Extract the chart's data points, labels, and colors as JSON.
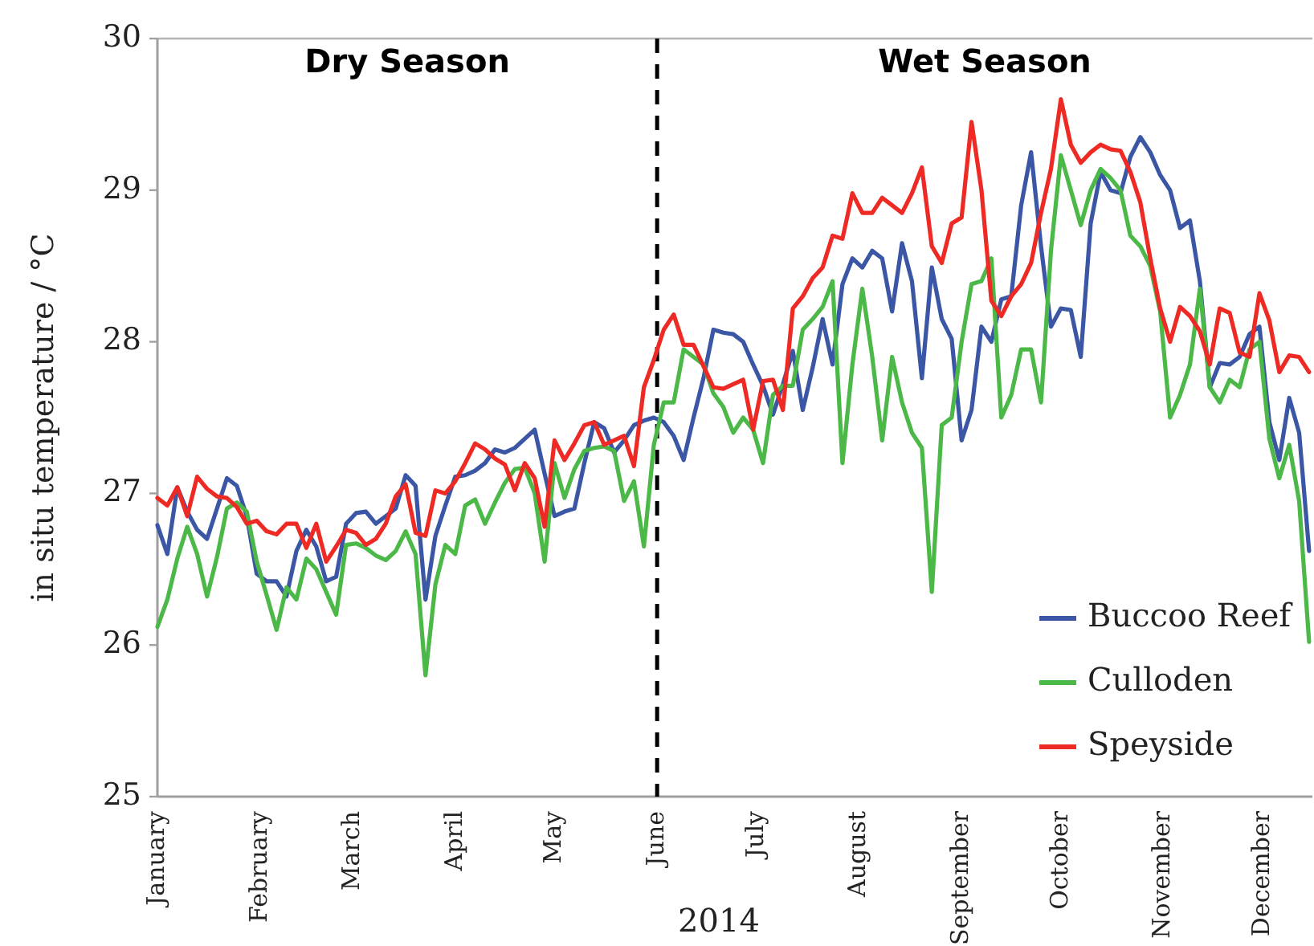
{
  "chart_data": {
    "type": "line",
    "xlabel": "2014",
    "ylabel": "in situ temperature / °C",
    "x": [
      "2014-01-01",
      "2014-01-04",
      "2014-01-07",
      "2014-01-10",
      "2014-01-13",
      "2014-01-16",
      "2014-01-19",
      "2014-01-22",
      "2014-01-25",
      "2014-01-28",
      "2014-01-31",
      "2014-02-03",
      "2014-02-06",
      "2014-02-09",
      "2014-02-12",
      "2014-02-15",
      "2014-02-18",
      "2014-02-21",
      "2014-02-24",
      "2014-02-27",
      "2014-03-02",
      "2014-03-05",
      "2014-03-08",
      "2014-03-11",
      "2014-03-14",
      "2014-03-17",
      "2014-03-20",
      "2014-03-23",
      "2014-03-26",
      "2014-03-29",
      "2014-04-01",
      "2014-04-04",
      "2014-04-07",
      "2014-04-10",
      "2014-04-13",
      "2014-04-16",
      "2014-04-19",
      "2014-04-22",
      "2014-04-25",
      "2014-04-28",
      "2014-05-01",
      "2014-05-04",
      "2014-05-07",
      "2014-05-10",
      "2014-05-13",
      "2014-05-16",
      "2014-05-19",
      "2014-05-22",
      "2014-05-25",
      "2014-05-28",
      "2014-05-31",
      "2014-06-03",
      "2014-06-06",
      "2014-06-09",
      "2014-06-12",
      "2014-06-15",
      "2014-06-18",
      "2014-06-21",
      "2014-06-24",
      "2014-06-27",
      "2014-06-30",
      "2014-07-03",
      "2014-07-06",
      "2014-07-09",
      "2014-07-12",
      "2014-07-15",
      "2014-07-18",
      "2014-07-21",
      "2014-07-24",
      "2014-07-27",
      "2014-07-30",
      "2014-08-02",
      "2014-08-05",
      "2014-08-08",
      "2014-08-11",
      "2014-08-14",
      "2014-08-17",
      "2014-08-20",
      "2014-08-23",
      "2014-08-26",
      "2014-08-29",
      "2014-09-01",
      "2014-09-04",
      "2014-09-07",
      "2014-09-10",
      "2014-09-13",
      "2014-09-16",
      "2014-09-19",
      "2014-09-22",
      "2014-09-25",
      "2014-09-28",
      "2014-10-01",
      "2014-10-04",
      "2014-10-07",
      "2014-10-10",
      "2014-10-13",
      "2014-10-16",
      "2014-10-19",
      "2014-10-22",
      "2014-10-25",
      "2014-10-28",
      "2014-10-31",
      "2014-11-03",
      "2014-11-06",
      "2014-11-09",
      "2014-11-12",
      "2014-11-15",
      "2014-11-18",
      "2014-11-21",
      "2014-11-24",
      "2014-11-27",
      "2014-11-30",
      "2014-12-03",
      "2014-12-06",
      "2014-12-09",
      "2014-12-12",
      "2014-12-15"
    ],
    "xlim": [
      "2014-01-01",
      "2014-12-16"
    ],
    "xticks": [
      {
        "value": "2014-01-01",
        "label": "January"
      },
      {
        "value": "2014-02-01",
        "label": "February"
      },
      {
        "value": "2014-03-01",
        "label": "March"
      },
      {
        "value": "2014-04-01",
        "label": "April"
      },
      {
        "value": "2014-05-01",
        "label": "May"
      },
      {
        "value": "2014-06-01",
        "label": "June"
      },
      {
        "value": "2014-07-01",
        "label": "July"
      },
      {
        "value": "2014-08-01",
        "label": "August"
      },
      {
        "value": "2014-09-01",
        "label": "September"
      },
      {
        "value": "2014-10-01",
        "label": "October"
      },
      {
        "value": "2014-11-01",
        "label": "November"
      },
      {
        "value": "2014-12-01",
        "label": "December"
      }
    ],
    "ylim": [
      25,
      30
    ],
    "yticks": [
      25,
      26,
      27,
      28,
      29,
      30
    ],
    "legend": "bottom right",
    "series": [
      {
        "name": "Buccoo Reef",
        "color": "#3a56a5",
        "values": [
          26.79,
          26.6,
          27.04,
          26.88,
          26.76,
          26.7,
          26.9,
          27.1,
          27.05,
          26.85,
          26.47,
          26.42,
          26.42,
          26.32,
          26.62,
          26.76,
          26.65,
          26.42,
          26.45,
          26.8,
          26.87,
          26.88,
          26.8,
          26.85,
          26.9,
          27.12,
          27.05,
          26.3,
          26.72,
          26.92,
          27.11,
          27.12,
          27.15,
          27.2,
          27.29,
          27.27,
          27.3,
          27.36,
          27.42,
          27.13,
          26.85,
          26.88,
          26.9,
          27.2,
          27.47,
          27.43,
          27.27,
          27.35,
          27.45,
          27.48,
          27.5,
          27.47,
          27.38,
          27.22,
          27.5,
          27.76,
          28.08,
          28.06,
          28.05,
          28.0,
          27.85,
          27.71,
          27.52,
          27.72,
          27.94,
          27.55,
          27.83,
          28.15,
          27.85,
          28.38,
          28.55,
          28.49,
          28.6,
          28.55,
          28.2,
          28.65,
          28.4,
          27.76,
          28.49,
          28.15,
          28.02,
          27.35,
          27.55,
          28.1,
          28.0,
          28.28,
          28.3,
          28.9,
          29.25,
          28.63,
          28.1,
          28.22,
          28.21,
          27.9,
          28.78,
          29.12,
          29.0,
          28.98,
          29.22,
          29.35,
          29.25,
          29.1,
          29.0,
          28.75,
          28.8,
          28.4,
          27.7,
          27.86,
          27.85,
          27.9,
          28.05,
          28.1,
          27.47,
          27.22,
          27.63,
          27.4,
          26.62
        ]
      },
      {
        "name": "Culloden",
        "color": "#4cb848",
        "values": [
          26.12,
          26.3,
          26.57,
          26.78,
          26.6,
          26.32,
          26.58,
          26.9,
          26.94,
          26.88,
          26.55,
          26.33,
          26.1,
          26.38,
          26.3,
          26.57,
          26.5,
          26.35,
          26.2,
          26.66,
          26.67,
          26.64,
          26.59,
          26.56,
          26.62,
          26.75,
          26.6,
          25.8,
          26.4,
          26.66,
          26.6,
          26.92,
          26.96,
          26.8,
          26.94,
          27.07,
          27.16,
          27.17,
          27.0,
          26.55,
          27.2,
          26.97,
          27.16,
          27.28,
          27.3,
          27.31,
          27.28,
          26.95,
          27.08,
          26.65,
          27.32,
          27.6,
          27.6,
          27.95,
          27.9,
          27.85,
          27.66,
          27.57,
          27.4,
          27.5,
          27.42,
          27.2,
          27.65,
          27.71,
          27.71,
          28.08,
          28.15,
          28.23,
          28.4,
          27.2,
          27.85,
          28.35,
          27.9,
          27.35,
          27.9,
          27.6,
          27.4,
          27.3,
          26.35,
          27.45,
          27.5,
          28.0,
          28.38,
          28.4,
          28.55,
          27.5,
          27.65,
          27.95,
          27.95,
          27.6,
          28.6,
          29.23,
          29.0,
          28.77,
          29.0,
          29.14,
          29.08,
          29.0,
          28.7,
          28.63,
          28.5,
          28.2,
          27.5,
          27.65,
          27.85,
          28.35,
          27.7,
          27.6,
          27.75,
          27.7,
          27.95,
          28.0,
          27.36,
          27.1,
          27.32,
          26.95,
          26.02
        ]
      },
      {
        "name": "Speyside",
        "color": "#ee2a24",
        "values": [
          26.97,
          26.92,
          27.04,
          26.85,
          27.11,
          27.03,
          26.98,
          26.97,
          26.91,
          26.8,
          26.82,
          26.75,
          26.73,
          26.8,
          26.8,
          26.64,
          26.8,
          26.55,
          26.65,
          26.76,
          26.74,
          26.66,
          26.7,
          26.8,
          26.98,
          27.06,
          26.74,
          26.72,
          27.02,
          27.0,
          27.08,
          27.2,
          27.33,
          27.29,
          27.23,
          27.19,
          27.02,
          27.2,
          27.1,
          26.78,
          27.35,
          27.22,
          27.33,
          27.45,
          27.47,
          27.32,
          27.35,
          27.38,
          27.18,
          27.7,
          27.88,
          28.08,
          28.18,
          27.98,
          27.98,
          27.84,
          27.7,
          27.69,
          27.72,
          27.75,
          27.42,
          27.74,
          27.75,
          27.55,
          28.22,
          28.3,
          28.42,
          28.49,
          28.7,
          28.68,
          28.98,
          28.85,
          28.85,
          28.95,
          28.9,
          28.85,
          28.98,
          29.15,
          28.63,
          28.52,
          28.78,
          28.82,
          29.45,
          29.0,
          28.27,
          28.17,
          28.3,
          28.38,
          28.52,
          28.85,
          29.14,
          29.6,
          29.3,
          29.18,
          29.25,
          29.3,
          29.27,
          29.26,
          29.12,
          28.92,
          28.55,
          28.22,
          28.0,
          28.23,
          28.17,
          28.07,
          27.85,
          28.22,
          28.19,
          27.93,
          27.9,
          28.32,
          28.14,
          27.8,
          27.91,
          27.9,
          27.8
        ]
      }
    ],
    "ref_lines": [
      {
        "axis": "x",
        "value": "2014-06-01",
        "color": "#000000",
        "line_style": "dashed"
      }
    ],
    "annotations": [
      "Dry Season",
      "Wet Season"
    ]
  }
}
